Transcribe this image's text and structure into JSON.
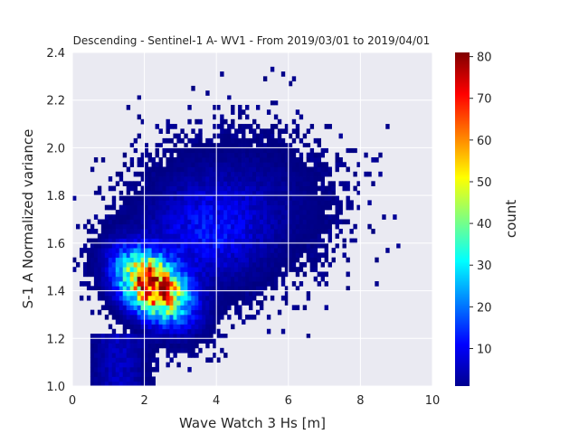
{
  "chart_data": {
    "type": "heatmap",
    "title": "Descending - Sentinel-1 A- WV1 - From 2019/03/01 to 2019/04/01",
    "xlabel": "Wave Watch 3 Hs [m]",
    "ylabel": "S-1 A Normalized variance",
    "xlim": [
      0,
      10
    ],
    "ylim": [
      1.0,
      2.4
    ],
    "xticks": [
      "0",
      "2",
      "4",
      "6",
      "8",
      "10"
    ],
    "yticks": [
      "1.0",
      "1.2",
      "1.4",
      "1.6",
      "1.8",
      "2.0",
      "2.2",
      "2.4"
    ],
    "grid": true,
    "colorbar": {
      "label": "count",
      "min": 1,
      "max": 81,
      "ticks": [
        "10",
        "20",
        "30",
        "40",
        "50",
        "60",
        "70",
        "80"
      ],
      "colormap": "jet"
    },
    "bins": {
      "x": 100,
      "y": 70
    },
    "density_peak": {
      "x": 2.2,
      "y": 1.42,
      "count": 80
    }
  },
  "colors": {
    "plot_background": "#eaeaf2",
    "grid": "#ffffff",
    "text": "#262626"
  }
}
